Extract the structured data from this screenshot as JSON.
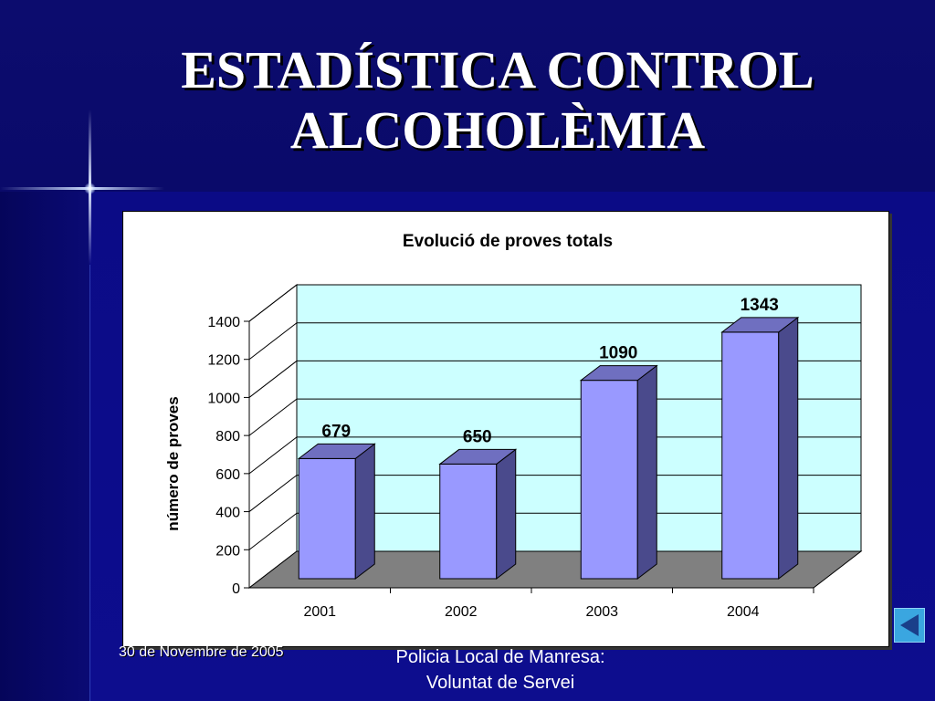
{
  "slide": {
    "title_line1": "ESTADÍSTICA CONTROL",
    "title_line2": "ALCOHOLÈMIA"
  },
  "footer": {
    "date": "30 de Novembre de 2005",
    "org_line1": "Policia Local de Manresa:",
    "org_line2": "Voluntat de Servei"
  },
  "navigation": {
    "back_icon": "triangle-left-icon"
  },
  "colors": {
    "background": "#0a0a74",
    "bar_front": "#9999ff",
    "bar_side": "#4a4a8c",
    "bar_top": "#6f6fc0",
    "back_wall": "#ccffff",
    "floor": "#808080"
  },
  "chart_data": {
    "type": "bar",
    "title": "Evolució de proves totals",
    "xlabel": "",
    "ylabel": "número de proves",
    "categories": [
      "2001",
      "2002",
      "2003",
      "2004"
    ],
    "values": [
      679,
      650,
      1090,
      1343
    ],
    "data_labels": [
      "679",
      "650",
      "1090",
      "1343"
    ],
    "yticks": [
      0,
      200,
      400,
      600,
      800,
      1000,
      1200,
      1400
    ],
    "ylim": [
      0,
      1400
    ],
    "grid": true,
    "legend": "none",
    "style": "3d-column"
  }
}
